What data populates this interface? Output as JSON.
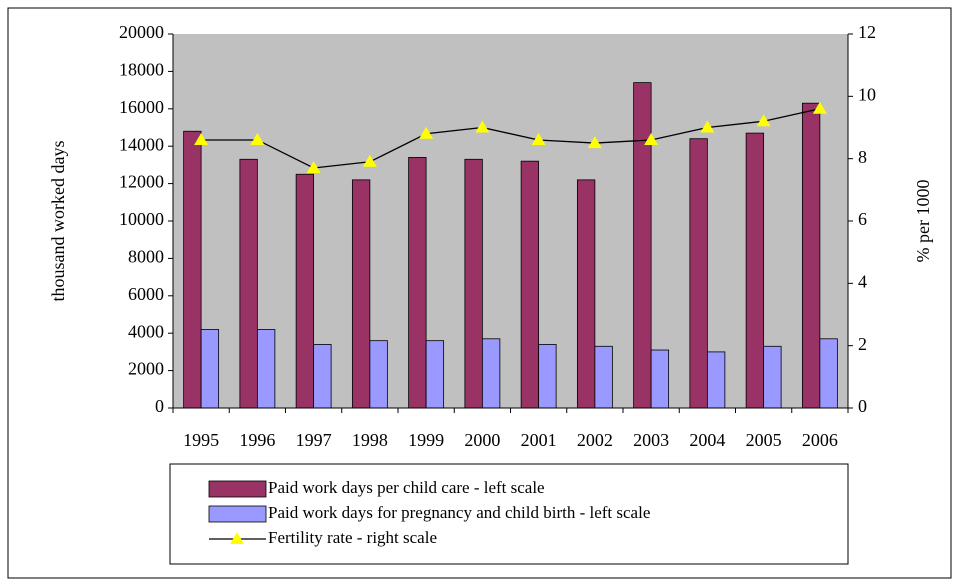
{
  "chart_data": {
    "type": "bar",
    "categories": [
      "1995",
      "1996",
      "1997",
      "1998",
      "1999",
      "2000",
      "2001",
      "2002",
      "2003",
      "2004",
      "2005",
      "2006"
    ],
    "y_label": "thousand worked days",
    "y2_label": "% per 1000",
    "ylim": [
      0,
      20000
    ],
    "yticks": [
      0,
      2000,
      4000,
      6000,
      8000,
      10000,
      12000,
      14000,
      16000,
      18000,
      20000
    ],
    "y2lim": [
      0,
      12
    ],
    "y2ticks": [
      0,
      2,
      4,
      6,
      8,
      10,
      12
    ],
    "series": [
      {
        "name": "Paid work days per child care - left scale",
        "color": "#993366",
        "values": [
          14800,
          13300,
          12500,
          12200,
          13400,
          13300,
          13200,
          12200,
          17400,
          14400,
          14700,
          16300
        ]
      },
      {
        "name": "Paid work days for pregnancy and child birth - left scale",
        "color": "#9999ff",
        "values": [
          4200,
          4200,
          3400,
          3600,
          3600,
          3700,
          3400,
          3300,
          3100,
          3000,
          3300,
          3700
        ]
      },
      {
        "name": "Fertility rate - right scale",
        "color": "#000000",
        "marker_color": "#ffff00",
        "type": "line",
        "axis": "y2",
        "values": [
          8.6,
          8.6,
          7.7,
          7.9,
          8.8,
          9.0,
          8.6,
          8.5,
          8.6,
          9.0,
          9.2,
          9.6
        ]
      }
    ]
  }
}
